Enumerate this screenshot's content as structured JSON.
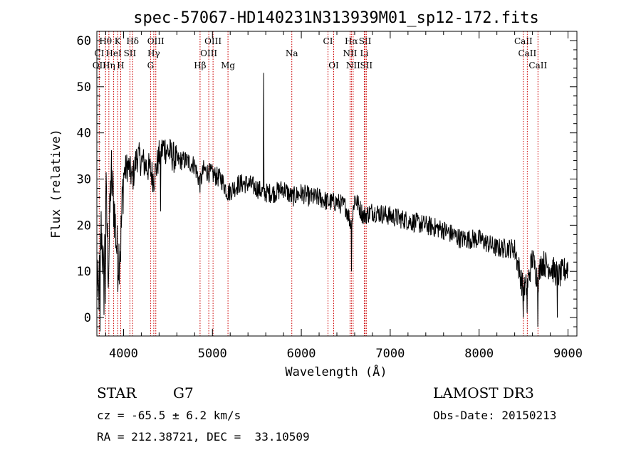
{
  "chart_data": {
    "type": "line",
    "title": "spec-57067-HD140231N313939M01_sp12-172.fits",
    "xlabel": "Wavelength (Å)",
    "ylabel": "Flux (relative)",
    "xlim": [
      3700,
      9100
    ],
    "ylim": [
      -4,
      62
    ],
    "xticks": [
      4000,
      5000,
      6000,
      7000,
      8000,
      9000
    ],
    "yticks": [
      0,
      10,
      20,
      30,
      40,
      50,
      60
    ],
    "spectral_lines": [
      {
        "name": "Hθ",
        "wavelength": 3798,
        "row": 0
      },
      {
        "name": "K",
        "wavelength": 3934,
        "row": 0
      },
      {
        "name": "Hδ",
        "wavelength": 4102,
        "row": 0
      },
      {
        "name": "OIII",
        "wavelength": 4363,
        "row": 0
      },
      {
        "name": "OIII",
        "wavelength": 5007,
        "row": 0
      },
      {
        "name": "CI",
        "wavelength": 6300,
        "row": 0
      },
      {
        "name": "Hα",
        "wavelength": 6563,
        "row": 0
      },
      {
        "name": "SII",
        "wavelength": 6717,
        "row": 0
      },
      {
        "name": "CaII",
        "wavelength": 8498,
        "row": 0
      },
      {
        "name": "CI",
        "wavelength": 3727,
        "row": 1
      },
      {
        "name": "HeI",
        "wavelength": 3889,
        "row": 1
      },
      {
        "name": "SII",
        "wavelength": 4072,
        "row": 1
      },
      {
        "name": "Hγ",
        "wavelength": 4340,
        "row": 1
      },
      {
        "name": "OIII",
        "wavelength": 4959,
        "row": 1
      },
      {
        "name": "Na",
        "wavelength": 5893,
        "row": 1
      },
      {
        "name": "NII",
        "wavelength": 6548,
        "row": 1
      },
      {
        "name": "Li",
        "wavelength": 6708,
        "row": 1
      },
      {
        "name": "CaII",
        "wavelength": 8542,
        "row": 1
      },
      {
        "name": "OII",
        "wavelength": 3727,
        "row": 2
      },
      {
        "name": "Hη",
        "wavelength": 3835,
        "row": 2
      },
      {
        "name": "H",
        "wavelength": 3968,
        "row": 2
      },
      {
        "name": "G",
        "wavelength": 4304,
        "row": 2
      },
      {
        "name": "Hβ",
        "wavelength": 4861,
        "row": 2
      },
      {
        "name": "Mg",
        "wavelength": 5175,
        "row": 2
      },
      {
        "name": "OI",
        "wavelength": 6364,
        "row": 2
      },
      {
        "name": "NII",
        "wavelength": 6583,
        "row": 2
      },
      {
        "name": "SII",
        "wavelength": 6731,
        "row": 2
      },
      {
        "name": "CaII",
        "wavelength": 8662,
        "row": 2
      }
    ],
    "spectrum_anchors": [
      [
        3700,
        8
      ],
      [
        3720,
        4
      ],
      [
        3750,
        20
      ],
      [
        3780,
        6
      ],
      [
        3800,
        28
      ],
      [
        3830,
        10
      ],
      [
        3860,
        32
      ],
      [
        3900,
        22
      ],
      [
        3934,
        12
      ],
      [
        3968,
        16
      ],
      [
        4000,
        31
      ],
      [
        4050,
        33
      ],
      [
        4102,
        30
      ],
      [
        4150,
        35
      ],
      [
        4200,
        34
      ],
      [
        4250,
        33
      ],
      [
        4300,
        32
      ],
      [
        4340,
        30
      ],
      [
        4400,
        35
      ],
      [
        4450,
        37
      ],
      [
        4500,
        36
      ],
      [
        4600,
        34
      ],
      [
        4700,
        34
      ],
      [
        4800,
        33
      ],
      [
        4861,
        29
      ],
      [
        4900,
        32
      ],
      [
        5000,
        31
      ],
      [
        5100,
        30
      ],
      [
        5175,
        27
      ],
      [
        5300,
        29
      ],
      [
        5400,
        29
      ],
      [
        5500,
        28
      ],
      [
        5580,
        27
      ],
      [
        5700,
        27
      ],
      [
        5800,
        28
      ],
      [
        5893,
        26
      ],
      [
        6000,
        27
      ],
      [
        6100,
        26
      ],
      [
        6200,
        26
      ],
      [
        6300,
        25
      ],
      [
        6400,
        25
      ],
      [
        6500,
        24
      ],
      [
        6563,
        20
      ],
      [
        6600,
        26
      ],
      [
        6700,
        22
      ],
      [
        6800,
        23
      ],
      [
        7000,
        22
      ],
      [
        7200,
        21
      ],
      [
        7400,
        20
      ],
      [
        7600,
        19
      ],
      [
        7800,
        17
      ],
      [
        8000,
        17
      ],
      [
        8200,
        15
      ],
      [
        8400,
        15
      ],
      [
        8498,
        6
      ],
      [
        8542,
        7
      ],
      [
        8600,
        13
      ],
      [
        8662,
        8
      ],
      [
        8700,
        12
      ],
      [
        8800,
        11
      ],
      [
        8900,
        9
      ],
      [
        9000,
        11
      ]
    ],
    "spectrum_spikes": [
      {
        "x": 5577,
        "y": 53
      },
      {
        "x": 3735,
        "y": -3
      },
      {
        "x": 3795,
        "y": 3
      },
      {
        "x": 3870,
        "y": 27
      },
      {
        "x": 4415,
        "y": 23
      },
      {
        "x": 6563,
        "y": 10
      },
      {
        "x": 8498,
        "y": 0
      },
      {
        "x": 8542,
        "y": 1
      },
      {
        "x": 8662,
        "y": -2
      },
      {
        "x": 8880,
        "y": 0
      }
    ]
  },
  "info": {
    "object_class": "STAR",
    "subclass": "G7",
    "survey": "LAMOST DR3",
    "cz": "cz = -65.5 ± 6.2 km/s",
    "obs_date": "Obs-Date: 20150213",
    "coords": "RA = 212.38721, DEC =  33.10509"
  }
}
